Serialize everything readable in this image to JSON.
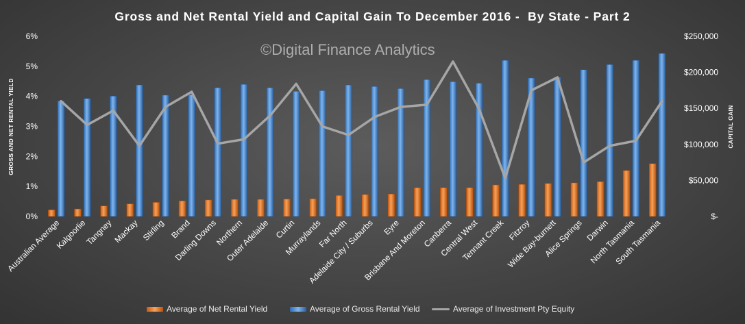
{
  "chart_data": {
    "type": "bar",
    "title": "Gross and Net Rental Yield and Capital Gain To December 2016 -  By State - Part 2",
    "watermark": "©Digital Finance Analytics",
    "ylabel_left": "GROSS AND NET RENTAL YIELD",
    "ylabel_right": "CAPITAL GAIN",
    "ylim_left": [
      0,
      6
    ],
    "ylim_right": [
      0,
      250000
    ],
    "yticks_left": [
      "0%",
      "1%",
      "2%",
      "3%",
      "4%",
      "5%",
      "6%"
    ],
    "yticks_right": [
      "$-",
      "$50,000",
      "$100,000",
      "$150,000",
      "$200,000",
      "$250,000"
    ],
    "grid": false,
    "legend_position": "bottom",
    "categories": [
      "Australian Average",
      "Kalgoorlie",
      "Tangney",
      "Mackay",
      "Stirling",
      "Brand",
      "Darling Downs",
      "Northern",
      "Outer Adelaide",
      "Curtin",
      "Murraylands",
      "Far North",
      "Adelaide City / Suburbs",
      "Eyre",
      "Brisbane And Moreton",
      "Canberra",
      "Central West",
      "Tennant Creek",
      "Fitzroy",
      "Wide Bay-burnett",
      "Alice Springs",
      "Darwin",
      "North Tasmania",
      "South Tasmania"
    ],
    "series": [
      {
        "name": "Average of Net Rental Yield",
        "kind": "bar",
        "axis": "left",
        "color": "#e87722",
        "values": [
          0.22,
          0.25,
          0.35,
          0.42,
          0.47,
          0.52,
          0.55,
          0.57,
          0.57,
          0.58,
          0.59,
          0.7,
          0.73,
          0.75,
          0.96,
          0.96,
          0.96,
          1.05,
          1.07,
          1.1,
          1.12,
          1.16,
          1.53,
          1.76
        ]
      },
      {
        "name": "Average of Gross Rental Yield",
        "kind": "bar",
        "axis": "left",
        "color": "#4a90d9",
        "values": [
          3.85,
          3.93,
          4.01,
          4.38,
          4.04,
          4.06,
          4.29,
          4.4,
          4.29,
          4.17,
          4.19,
          4.38,
          4.33,
          4.26,
          4.56,
          4.49,
          4.44,
          5.2,
          4.61,
          4.64,
          4.89,
          5.06,
          5.2,
          5.43
        ]
      },
      {
        "name": "Average of Investment Pty Equity",
        "kind": "line",
        "axis": "right",
        "color": "#a6a6a6",
        "values": [
          160000,
          127000,
          147000,
          98000,
          152000,
          173000,
          101000,
          107000,
          140000,
          184000,
          125000,
          113000,
          138000,
          152000,
          155000,
          215000,
          149000,
          53000,
          175000,
          193000,
          75000,
          98000,
          105000,
          160000
        ]
      }
    ]
  }
}
